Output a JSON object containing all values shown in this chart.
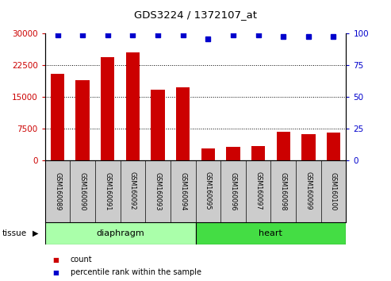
{
  "title": "GDS3224 / 1372107_at",
  "samples": [
    "GSM160089",
    "GSM160090",
    "GSM160091",
    "GSM160092",
    "GSM160093",
    "GSM160094",
    "GSM160095",
    "GSM160096",
    "GSM160097",
    "GSM160098",
    "GSM160099",
    "GSM160100"
  ],
  "counts": [
    20500,
    19000,
    24500,
    25500,
    16800,
    17200,
    2800,
    3200,
    3400,
    6800,
    6200,
    6600
  ],
  "percentiles": [
    99,
    99,
    99,
    99,
    99,
    99,
    96,
    99,
    99,
    98,
    98,
    98
  ],
  "bar_color": "#cc0000",
  "dot_color": "#0000cc",
  "ylim_left": [
    0,
    30000
  ],
  "ylim_right": [
    0,
    100
  ],
  "yticks_left": [
    0,
    7500,
    15000,
    22500,
    30000
  ],
  "yticks_right": [
    0,
    25,
    50,
    75,
    100
  ],
  "groups": [
    {
      "label": "diaphragm",
      "start": 0,
      "end": 6,
      "color": "#aaffaa"
    },
    {
      "label": "heart",
      "start": 6,
      "end": 12,
      "color": "#44dd44"
    }
  ],
  "group_row_label": "tissue",
  "legend_count_label": "count",
  "legend_pct_label": "percentile rank within the sample",
  "tick_color_left": "#cc0000",
  "tick_color_right": "#0000cc",
  "grid_color": "#000000",
  "bar_width": 0.55,
  "bg_color": "#ffffff",
  "plot_bg": "#ffffff",
  "tick_label_bg": "#cccccc"
}
